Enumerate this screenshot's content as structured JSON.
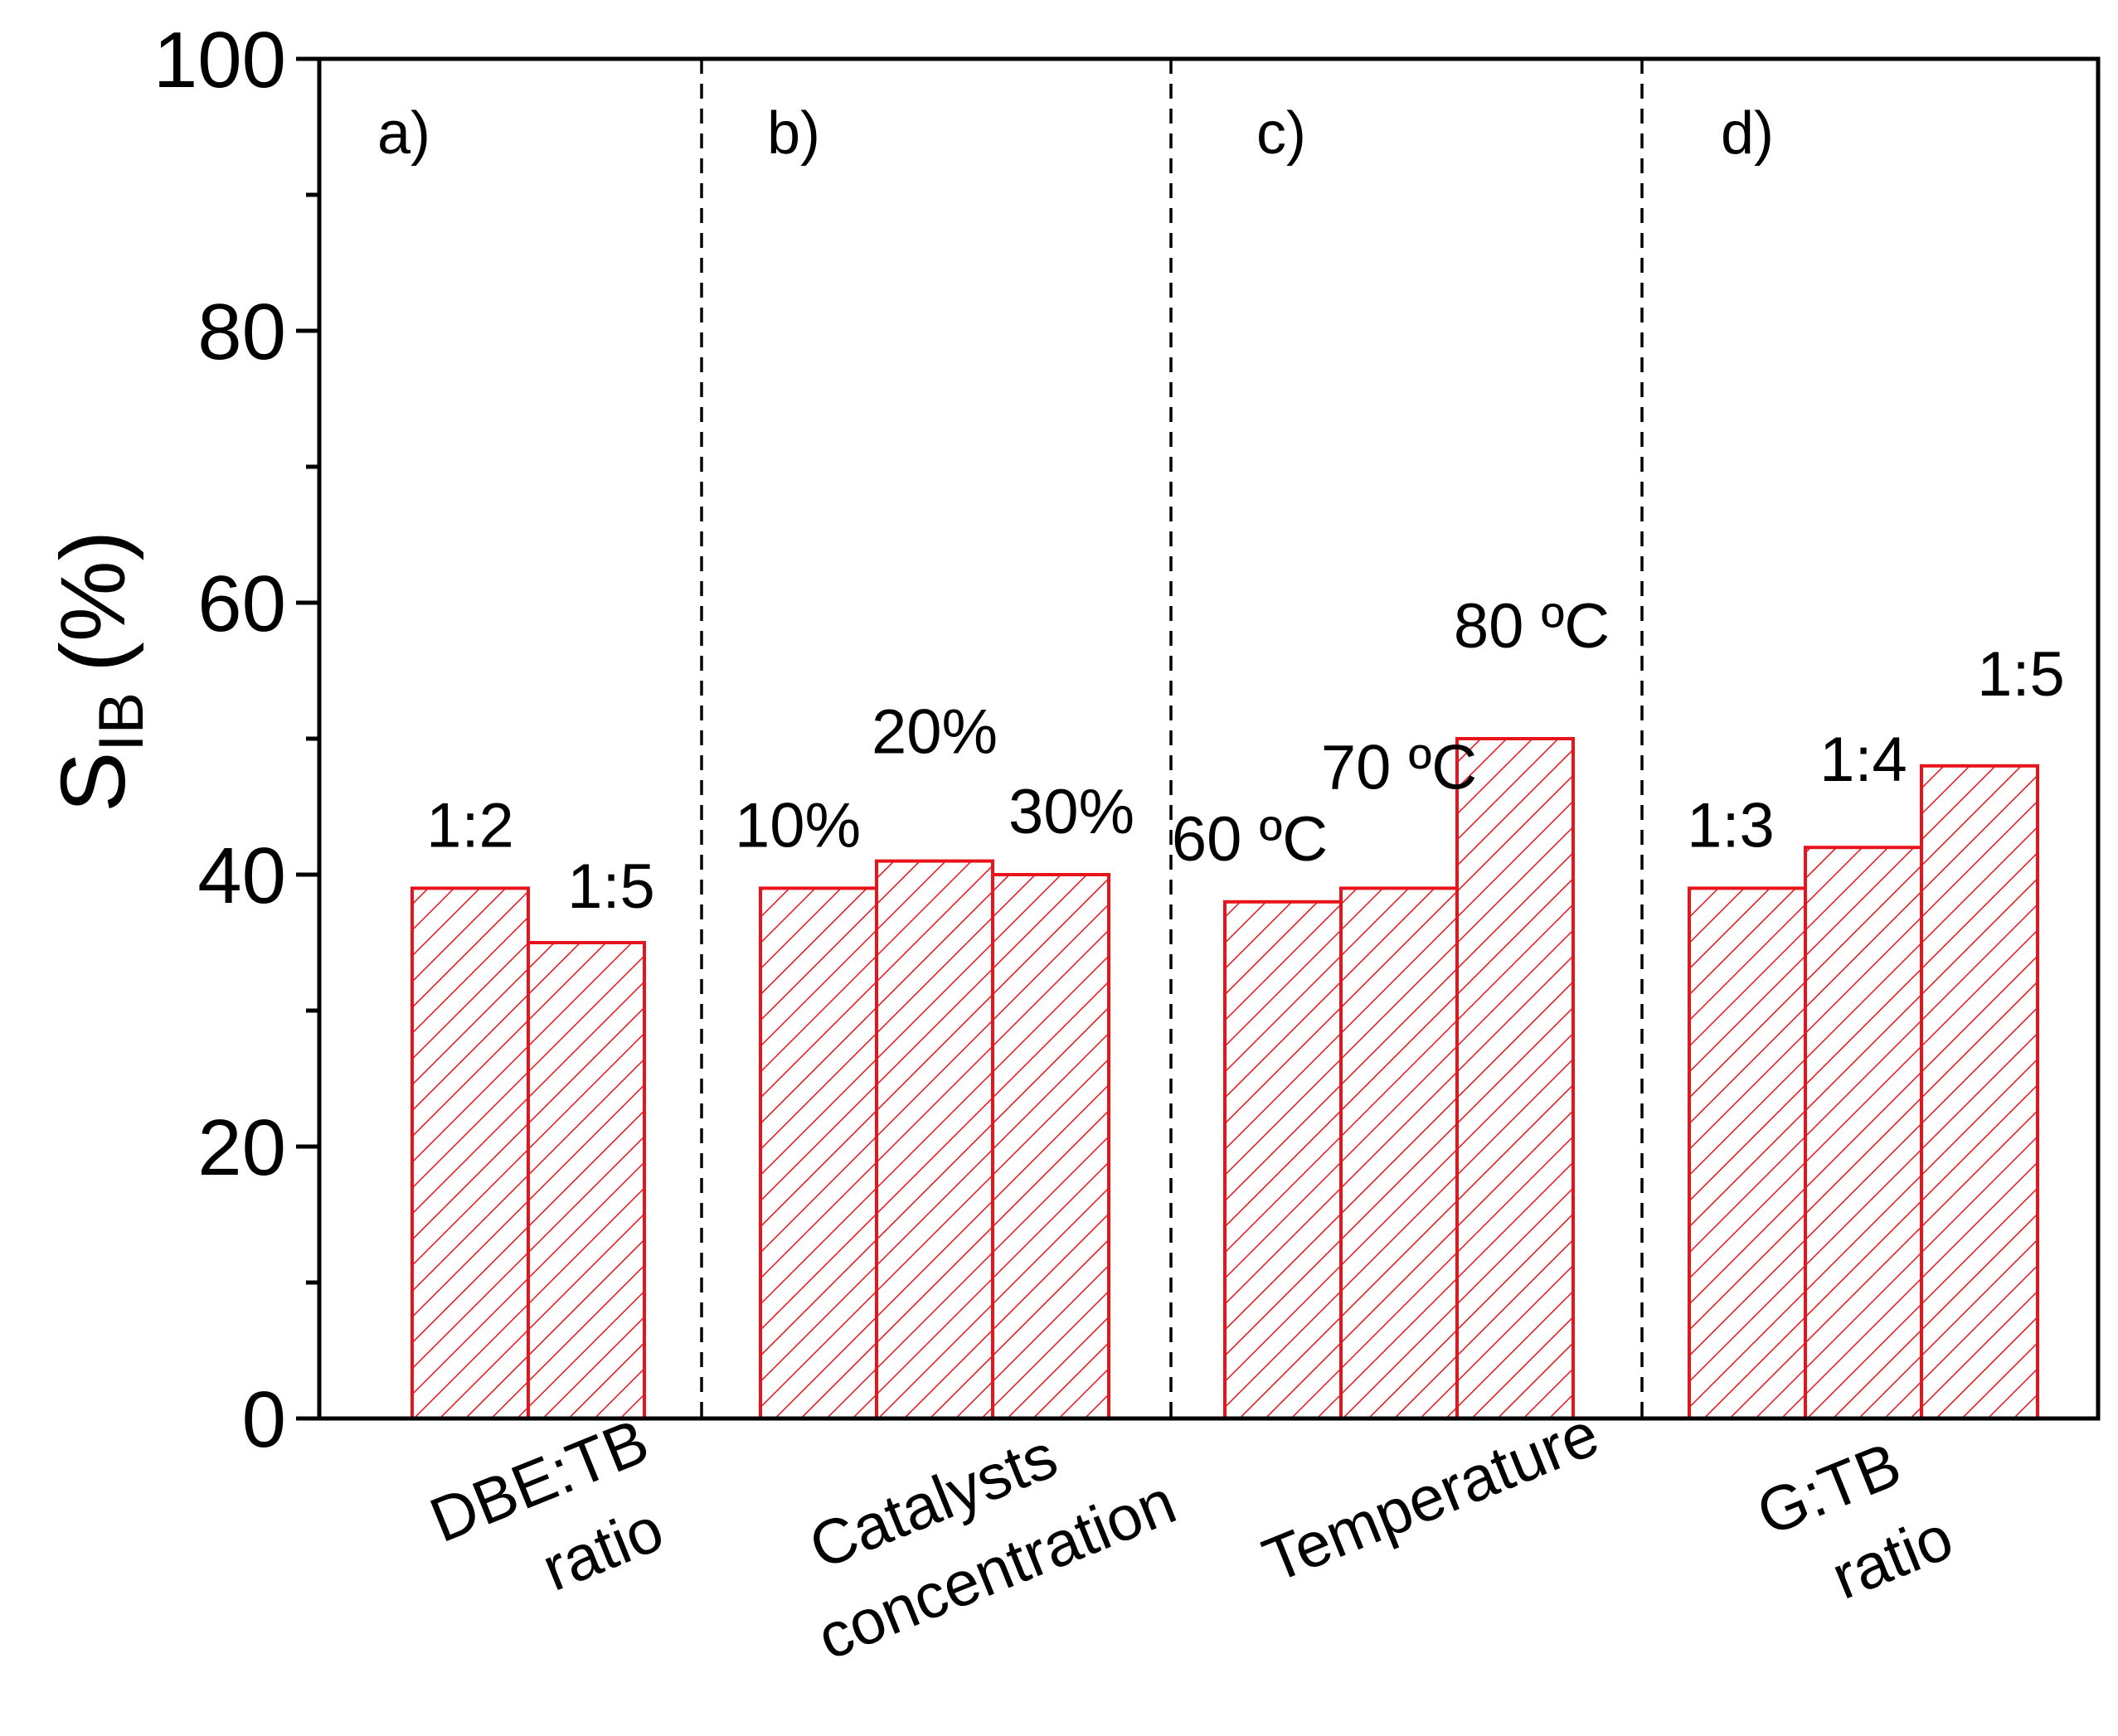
{
  "chart_data": {
    "type": "bar",
    "ylabel": {
      "main": "S",
      "subscript": "IB",
      "unit": "(%)"
    },
    "ylim": [
      0,
      100
    ],
    "yticks": [
      0,
      20,
      40,
      60,
      80,
      100
    ],
    "grid": false,
    "bar_color": "#e8141c",
    "bar_fill": "diagonal-hatch",
    "groups": [
      {
        "panel": "a)",
        "label_lines": [
          "DBE:TB",
          "ratio"
        ],
        "bars": [
          {
            "label": "1:2",
            "value": 39
          },
          {
            "label": "1:5",
            "value": 35
          }
        ]
      },
      {
        "panel": "b)",
        "label_lines": [
          "Catalysts",
          "concentration"
        ],
        "bars": [
          {
            "label": "10%",
            "value": 39
          },
          {
            "label": "20%",
            "value": 41
          },
          {
            "label": "30%",
            "value": 40
          }
        ]
      },
      {
        "panel": "c)",
        "label_lines": [
          "Temperature"
        ],
        "bars": [
          {
            "label": "60 ºC",
            "value": 38
          },
          {
            "label": "70 ºC",
            "value": 39
          },
          {
            "label": "80 ºC",
            "value": 50
          }
        ]
      },
      {
        "panel": "d)",
        "label_lines": [
          "G:TB",
          "ratio"
        ],
        "bars": [
          {
            "label": "1:3",
            "value": 39
          },
          {
            "label": "1:4",
            "value": 42
          },
          {
            "label": "1:5",
            "value": 48
          }
        ]
      }
    ]
  }
}
